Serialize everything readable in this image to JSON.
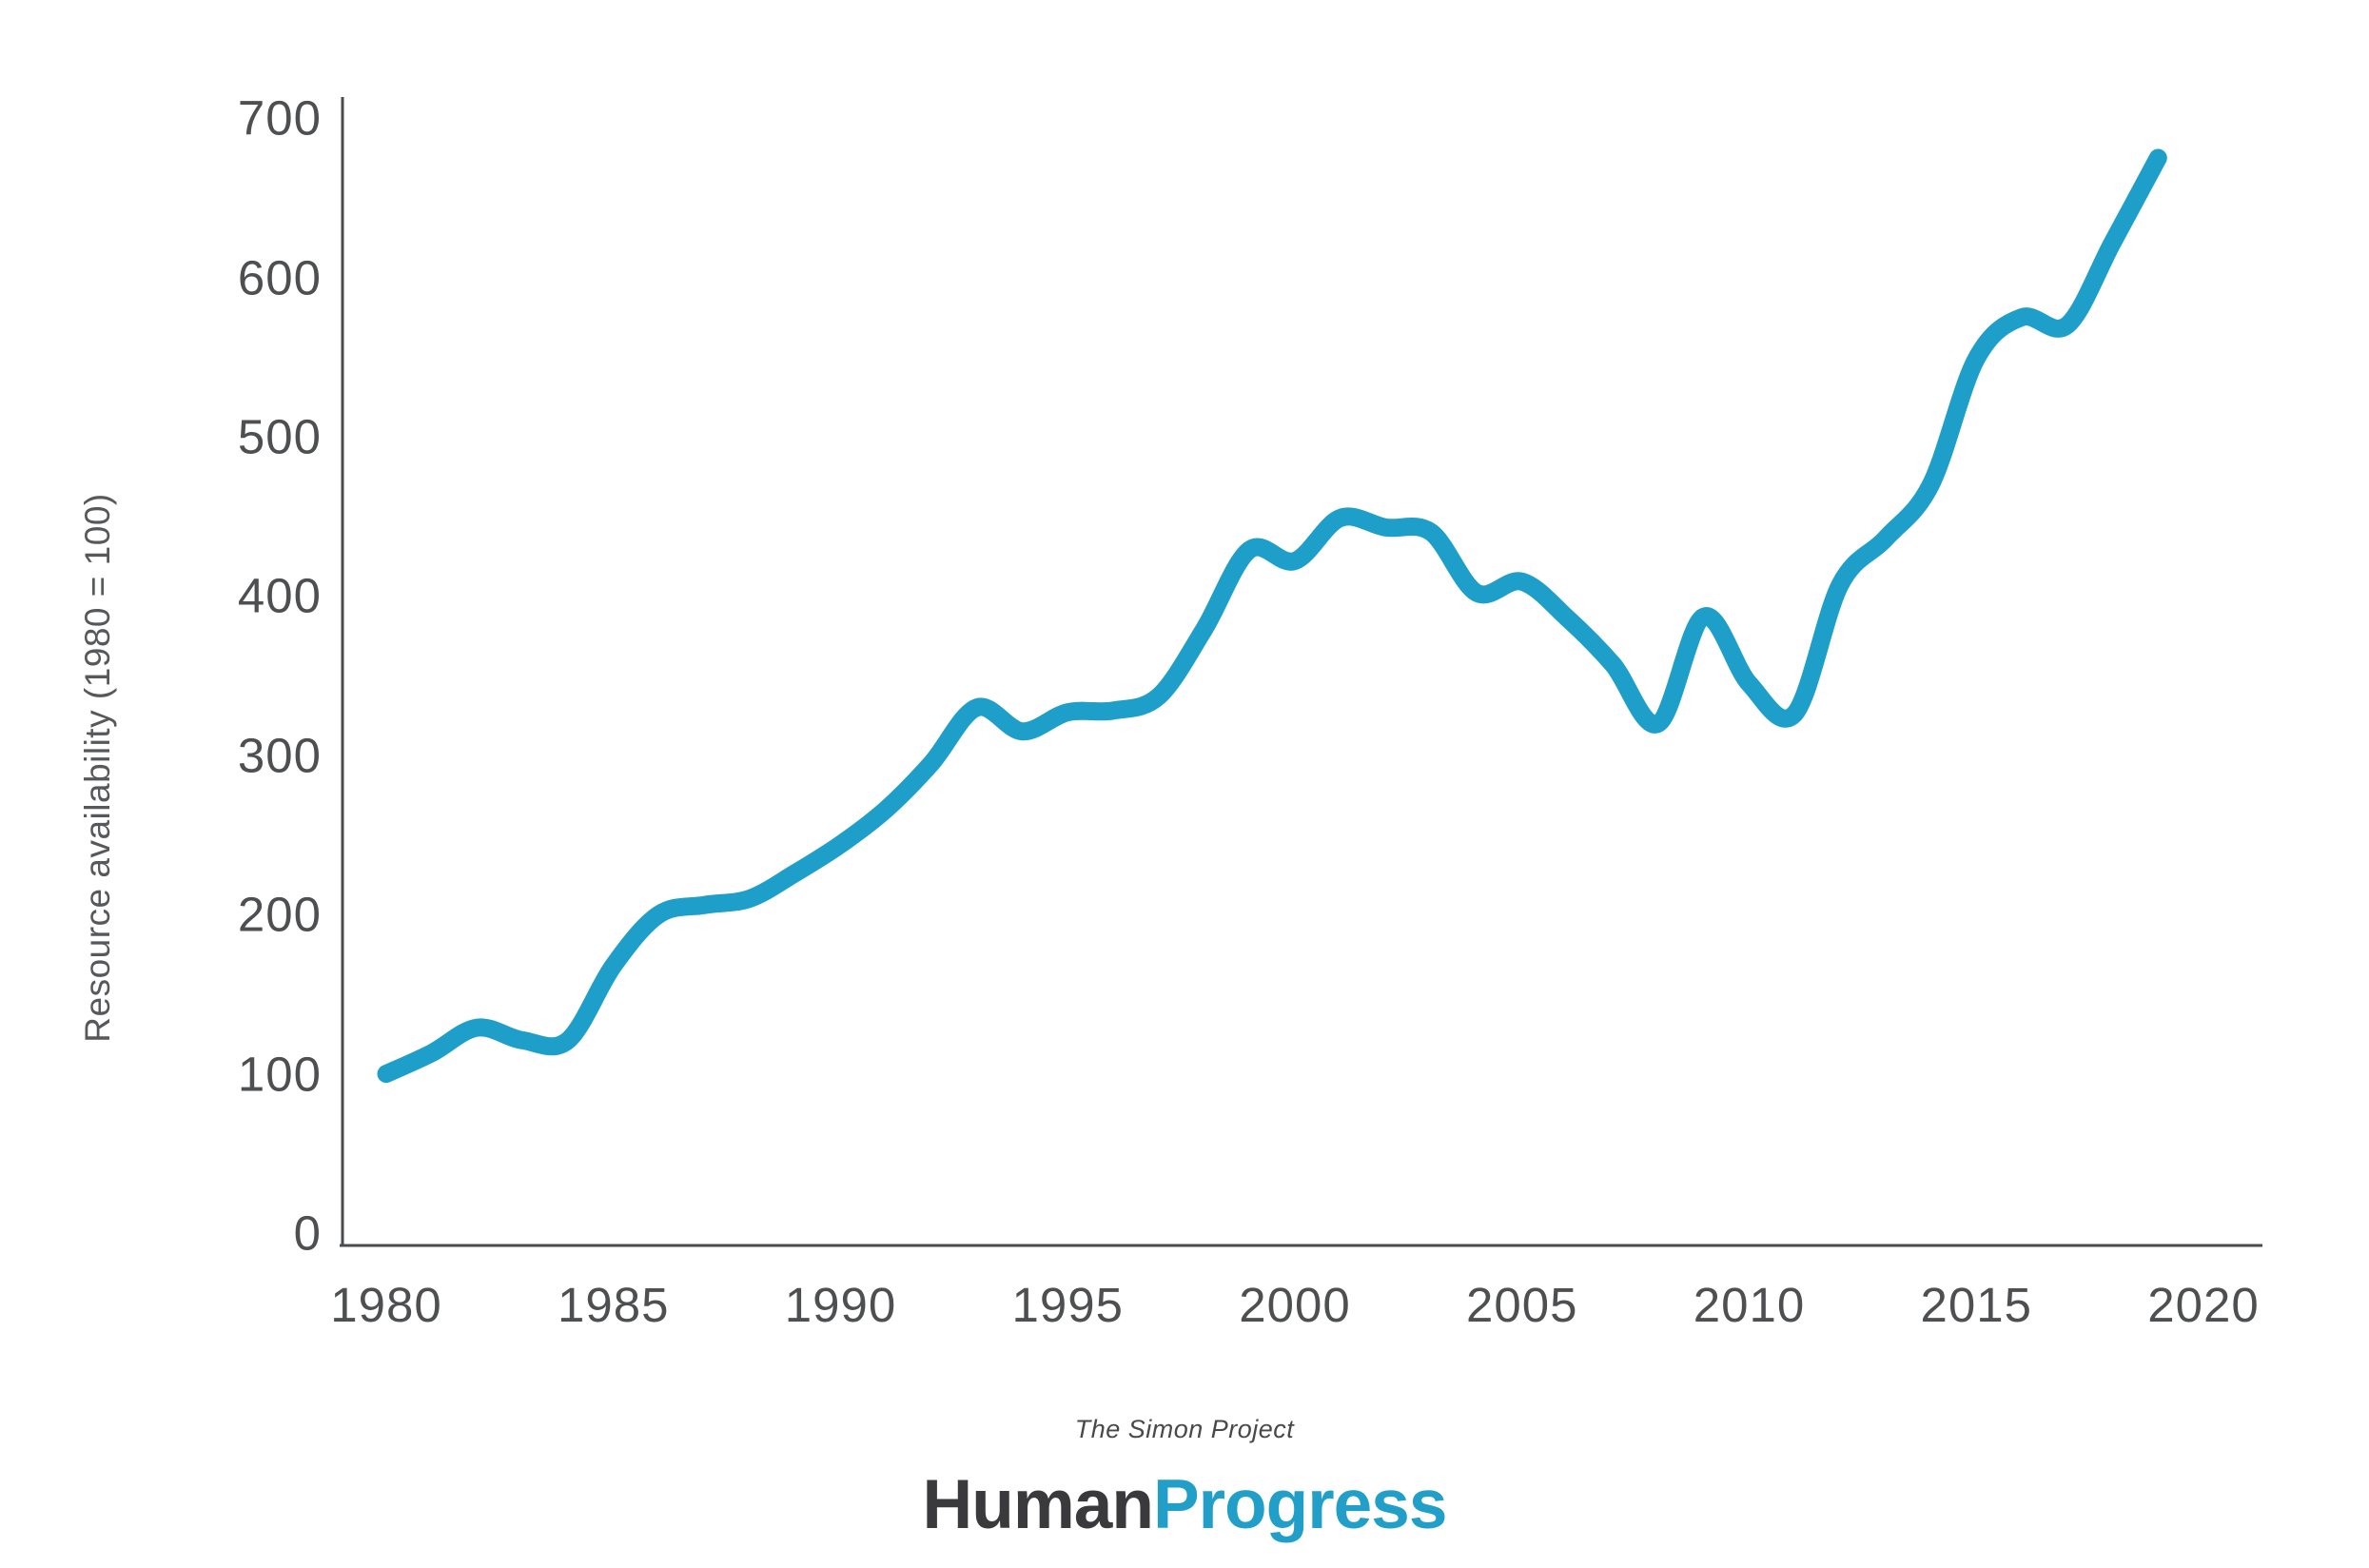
{
  "chart_data": {
    "type": "line",
    "title": "",
    "xlabel": "",
    "ylabel": "Resource availability (1980 = 100)",
    "x": [
      1980,
      1981,
      1982,
      1983,
      1984,
      1985,
      1986,
      1987,
      1988,
      1989,
      1990,
      1991,
      1992,
      1993,
      1994,
      1995,
      1996,
      1997,
      1998,
      1999,
      2000,
      2001,
      2002,
      2003,
      2004,
      2005,
      2006,
      2007,
      2008,
      2009,
      2010,
      2011,
      2012,
      2013,
      2014,
      2015,
      2016,
      2017,
      2018,
      2019
    ],
    "values": [
      100,
      113,
      129,
      121,
      121,
      168,
      200,
      206,
      210,
      226,
      244,
      266,
      295,
      330,
      315,
      327,
      328,
      337,
      379,
      429,
      422,
      449,
      443,
      440,
      402,
      409,
      386,
      357,
      320,
      387,
      345,
      326,
      407,
      436,
      470,
      549,
      575,
      570,
      622,
      675
    ],
    "x_ticks": [
      "1980",
      "1985",
      "1990",
      "1995",
      "2000",
      "2005",
      "2010",
      "2015",
      "2020"
    ],
    "x_tick_years": [
      1980,
      1985,
      1990,
      1995,
      2000,
      2005,
      2010,
      2015,
      2020
    ],
    "y_ticks": [
      "0",
      "100",
      "200",
      "300",
      "400",
      "500",
      "600",
      "700"
    ],
    "y_tick_values": [
      0,
      100,
      200,
      300,
      400,
      500,
      600,
      700
    ],
    "xlim": [
      1980,
      2020
    ],
    "ylim": [
      0,
      700
    ],
    "grid": false,
    "legend": false,
    "line_color": "#1e9fc9",
    "axis_color": "#4a4b4d"
  },
  "footer": {
    "tagline": "The Simon Project",
    "brand_dark": "Human",
    "brand_blue": "Progress"
  }
}
